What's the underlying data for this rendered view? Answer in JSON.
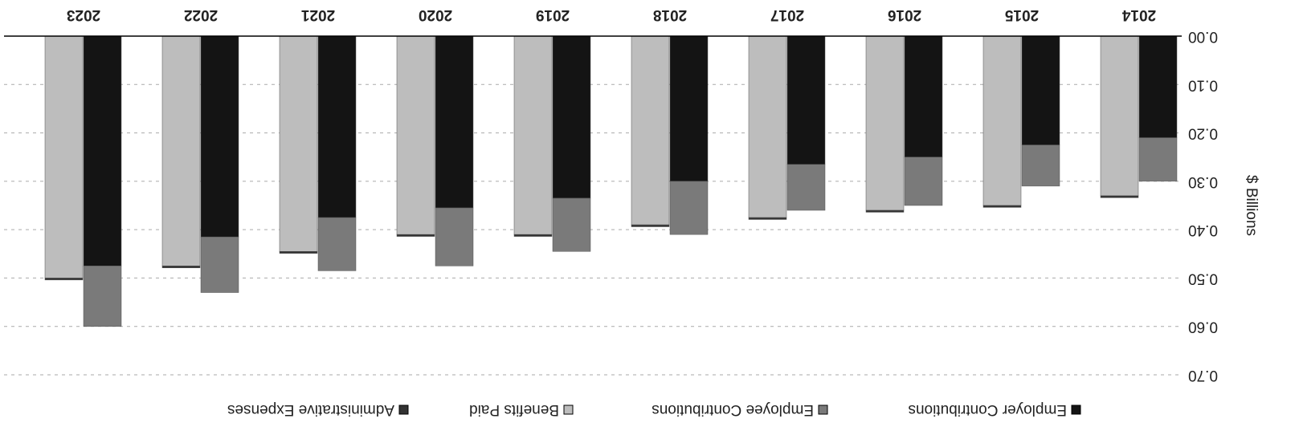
{
  "chart_data": {
    "type": "bar",
    "stacked": true,
    "y_label": "$ Billions",
    "categories": [
      "2014",
      "2015",
      "2016",
      "2017",
      "2018",
      "2019",
      "2020",
      "2021",
      "2022",
      "2023"
    ],
    "series": [
      {
        "name": "Employer Contributions",
        "color": "#141414",
        "stack": 0,
        "values": [
          0.21,
          0.225,
          0.25,
          0.265,
          0.3,
          0.335,
          0.355,
          0.375,
          0.415,
          0.475
        ]
      },
      {
        "name": "Employee Contributions",
        "color": "#7a7a7a",
        "stack": 0,
        "values": [
          0.09,
          0.085,
          0.1,
          0.095,
          0.11,
          0.11,
          0.12,
          0.11,
          0.115,
          0.125
        ]
      },
      {
        "name": "Benefits Paid",
        "color": "#bdbdbd",
        "stack": 1,
        "values": [
          0.33,
          0.35,
          0.36,
          0.375,
          0.39,
          0.41,
          0.41,
          0.445,
          0.475,
          0.5
        ]
      },
      {
        "name": "Administrative Expenses",
        "color": "#333333",
        "stack": 1,
        "values": [
          0.004,
          0.004,
          0.004,
          0.004,
          0.004,
          0.004,
          0.004,
          0.004,
          0.004,
          0.004
        ]
      }
    ],
    "ylim": [
      0,
      0.7
    ],
    "yticks": [
      {
        "value": 0,
        "label": "0.00"
      },
      {
        "value": 0.1,
        "label": "0.10"
      },
      {
        "value": 0.2,
        "label": "0.20"
      },
      {
        "value": 0.3,
        "label": "0.30"
      },
      {
        "value": 0.4,
        "label": "0.40"
      },
      {
        "value": 0.5,
        "label": "0.50"
      },
      {
        "value": 0.6,
        "label": "0.60"
      },
      {
        "value": 0.7,
        "label": "0.70"
      }
    ],
    "grid": true,
    "legend": "top",
    "rotated": 180
  }
}
